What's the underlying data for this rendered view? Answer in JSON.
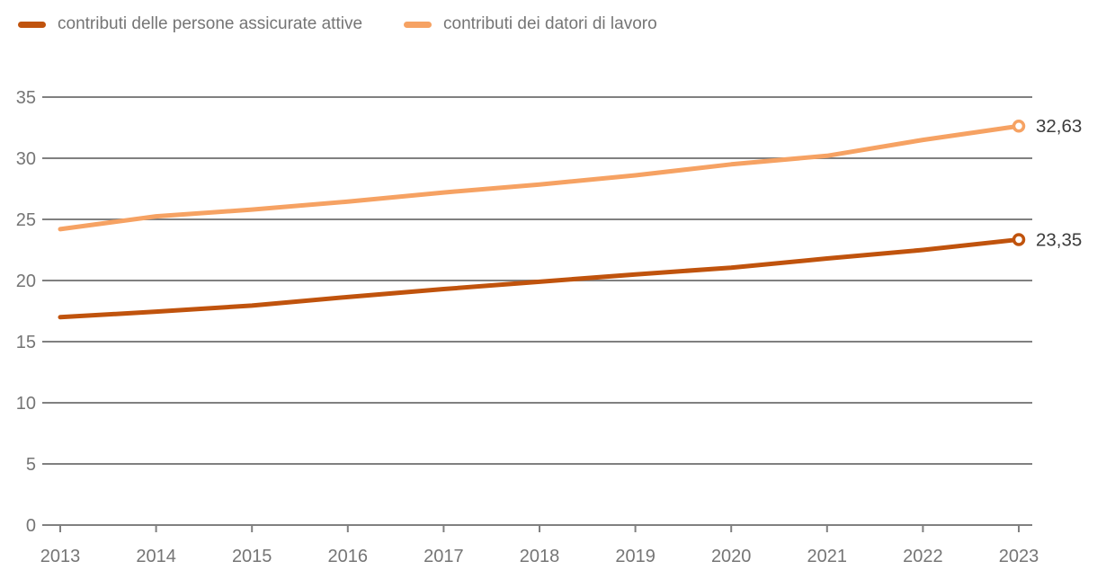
{
  "legend": {
    "items": [
      {
        "label": "contributi delle persone assicurate attive",
        "color": "#c0530d"
      },
      {
        "label": "contributi dei datori di lavoro",
        "color": "#f6a263"
      }
    ]
  },
  "chart_data": {
    "type": "line",
    "x": [
      2013,
      2014,
      2015,
      2016,
      2017,
      2018,
      2019,
      2020,
      2021,
      2022,
      2023
    ],
    "series": [
      {
        "name": "contributi delle persone assicurate attive",
        "color": "#c0530d",
        "values": [
          17.0,
          17.45,
          17.95,
          18.65,
          19.3,
          19.9,
          20.5,
          21.05,
          21.8,
          22.5,
          23.35
        ],
        "end_label": "23,35"
      },
      {
        "name": "contributi dei datori di lavoro",
        "color": "#f6a263",
        "values": [
          24.2,
          25.25,
          25.8,
          26.45,
          27.2,
          27.85,
          28.6,
          29.5,
          30.2,
          31.5,
          32.63
        ],
        "end_label": "32,63"
      }
    ],
    "title": "",
    "xlabel": "",
    "ylabel": "",
    "ylim": [
      0,
      35
    ],
    "yticks": [
      0,
      5,
      10,
      15,
      20,
      25,
      30,
      35
    ],
    "grid": "horizontal",
    "legend_position": "top",
    "colors": {
      "grid": "#808080",
      "axis_label": "#757575",
      "end_label": "#3c3c3c",
      "background": "#ffffff"
    }
  }
}
